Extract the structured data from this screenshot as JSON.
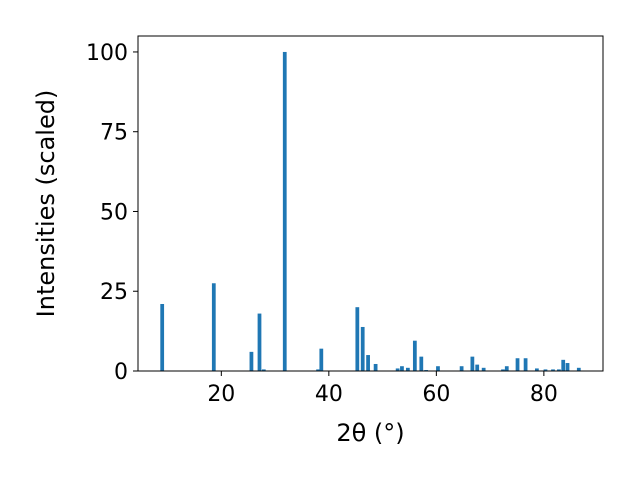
{
  "chart_data": {
    "type": "bar",
    "xlabel": "2θ (°)",
    "ylabel": "Intensities (scaled)",
    "xlim": [
      4.5,
      91
    ],
    "ylim": [
      0,
      105
    ],
    "xticks": [
      20,
      40,
      60,
      80
    ],
    "yticks": [
      0,
      25,
      50,
      75,
      100
    ],
    "xtick_labels": [
      "20",
      "40",
      "60",
      "80"
    ],
    "ytick_labels": [
      "0",
      "25",
      "50",
      "75",
      "100"
    ],
    "bar_width": 0.7,
    "color": "#1f77b4",
    "grid": false,
    "series": [
      {
        "x": [
          9.0,
          18.6,
          25.6,
          27.1,
          27.9,
          31.8,
          38.0,
          38.6,
          45.3,
          46.3,
          47.3,
          48.7,
          52.8,
          53.6,
          54.7,
          56.0,
          57.2,
          58.1,
          60.3,
          64.7,
          66.7,
          67.6,
          68.8,
          72.4,
          73.1,
          75.1,
          76.6,
          78.7,
          80.3,
          81.7,
          82.8,
          83.6,
          84.4,
          86.5
        ],
        "values": [
          21,
          27.5,
          6,
          18,
          0.5,
          100,
          0.5,
          7,
          20,
          13.8,
          5,
          2.2,
          0.8,
          1.5,
          1,
          9.5,
          4.5,
          0.3,
          1.5,
          1.5,
          4.5,
          2,
          1,
          0.5,
          1.5,
          4,
          4,
          0.8,
          0.5,
          0.5,
          0.5,
          3.5,
          2.5,
          1
        ]
      }
    ]
  }
}
